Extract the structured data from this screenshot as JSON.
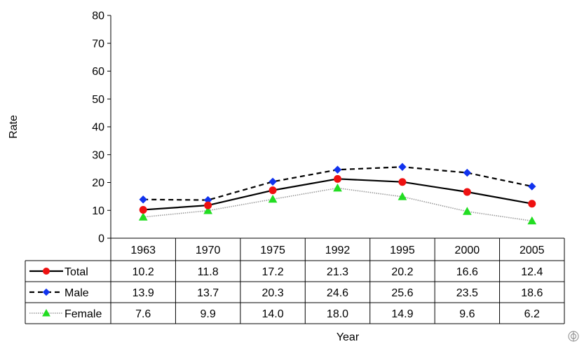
{
  "chart_data": {
    "type": "line",
    "categories": [
      "1963",
      "1970",
      "1975",
      "1992",
      "1995",
      "2000",
      "2005"
    ],
    "series": [
      {
        "name": "Total",
        "values": [
          10.2,
          11.8,
          17.2,
          21.3,
          20.2,
          16.6,
          12.4
        ],
        "labels": [
          "10.2",
          "11.8",
          "17.2",
          "21.3",
          "20.2",
          "16.6",
          "12.4"
        ],
        "color": "#ee1111",
        "line_color": "#000000",
        "marker": "circle",
        "line_style": "solid"
      },
      {
        "name": "Male",
        "values": [
          13.9,
          13.7,
          20.3,
          24.6,
          25.6,
          23.5,
          18.6
        ],
        "labels": [
          "13.9",
          "13.7",
          "20.3",
          "24.6",
          "25.6",
          "23.5",
          "18.6"
        ],
        "color": "#1133ee",
        "line_color": "#000000",
        "marker": "diamond",
        "line_style": "dashed"
      },
      {
        "name": "Female",
        "values": [
          7.6,
          9.9,
          14.0,
          18.0,
          14.9,
          9.6,
          6.2
        ],
        "labels": [
          "7.6",
          "9.9",
          "14.0",
          "18.0",
          "14.9",
          "9.6",
          "6.2"
        ],
        "color": "#22dd22",
        "line_color": "#999999",
        "marker": "triangle",
        "line_style": "dotted"
      }
    ],
    "xlabel": "Year",
    "ylabel": "Rate",
    "ylim": [
      0,
      80
    ],
    "yticks": [
      "0",
      "10",
      "20",
      "30",
      "40",
      "50",
      "60",
      "70",
      "80"
    ],
    "grid": false,
    "legend": "data-table"
  },
  "logo": {
    "name": "who-emblem-icon"
  }
}
